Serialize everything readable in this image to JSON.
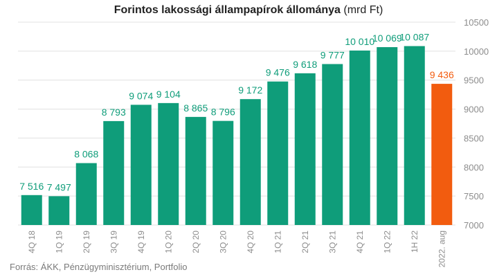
{
  "title": "Forintos lakossági állampapírok állománya",
  "unit": "(mrd Ft)",
  "source": "Forrás: ÁKK, Pénzügyminisztérium, Portfolio",
  "chart_data": {
    "type": "bar",
    "categories": [
      "4Q 18",
      "1Q 19",
      "2Q 19",
      "3Q 19",
      "4Q 19",
      "1Q 20",
      "2Q 20",
      "3Q 20",
      "4Q 20",
      "1Q 21",
      "2Q 21",
      "3Q 21",
      "4Q 21",
      "1Q 22",
      "1H 22",
      "2022. aug"
    ],
    "values": [
      7516,
      7497,
      8068,
      8793,
      9074,
      9104,
      8865,
      8796,
      9172,
      9476,
      9618,
      9777,
      10010,
      10069,
      10087,
      9436
    ],
    "value_labels": [
      "7 516",
      "7 497",
      "8 068",
      "8 793",
      "9 074",
      "9 104",
      "8 865",
      "8 796",
      "9 172",
      "9 476",
      "9 618",
      "9 777",
      "10 010",
      "10 069",
      "10 087",
      "9 436"
    ],
    "ylim": [
      7000,
      10500
    ],
    "yticks": [
      7000,
      7500,
      8000,
      8500,
      9000,
      9500,
      10000,
      10500
    ],
    "ytick_labels": [
      "7000",
      "7500",
      "8000",
      "8500",
      "9000",
      "9500",
      "10000",
      "10500"
    ],
    "grid": true,
    "colors": {
      "bar": "#0f9d7a",
      "highlight": "#f25c0f",
      "label": "#0f9d7a",
      "highlight_label": "#f25c0f",
      "axis_text": "#8c8c8c",
      "grid": "#e0e0e0"
    },
    "highlight_index": 15
  }
}
